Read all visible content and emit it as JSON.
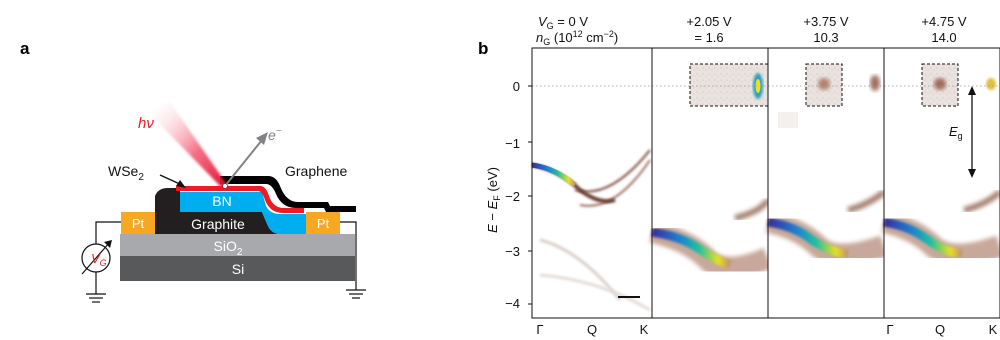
{
  "panel_a": {
    "label": "a",
    "layers": {
      "si": "Si",
      "sio2": "SiO",
      "sio2_sub": "2",
      "graphite": "Graphite",
      "bn": "BN",
      "pt_left": "Pt",
      "pt_right": "Pt"
    },
    "wse2": "WSe",
    "wse2_sub": "2",
    "graphene": "Graphene",
    "photon": "hν",
    "electron": "e",
    "electron_sup": "−",
    "gate_v": "V",
    "gate_v_sub": "G",
    "colors": {
      "si": "#58595b",
      "sio2": "#a7a9ac",
      "graphite": "#231f20",
      "bn": "#00aeef",
      "pt": "#f7a823",
      "wse2": "#ed1c24",
      "graphene": "#000000"
    }
  },
  "panel_b": {
    "label": "b",
    "header_line1_prefix": "V",
    "header_line1_sub": "G",
    "header_line1_val": " = 0 V",
    "header_line2_prefix": "n",
    "header_line2_sub": "G",
    "header_line2_val": " (10",
    "header_line2_exp": "12",
    "header_line2_unit": " cm",
    "header_line2_unit_exp": "−2",
    "header_line2_end": ")",
    "panels": [
      {
        "voltage": "",
        "density": ""
      },
      {
        "voltage": "+2.05 V",
        "density": "= 1.6"
      },
      {
        "voltage": "+3.75 V",
        "density": "10.3"
      },
      {
        "voltage": "+4.75 V",
        "density": "14.0"
      }
    ],
    "ylabel_e": "E",
    "ylabel_mid": " − ",
    "ylabel_ef": "E",
    "ylabel_ef_sub": "F",
    "ylabel_unit": " (eV)",
    "yticks": [
      "0",
      "−1",
      "−2",
      "−3",
      "−4"
    ],
    "xticks_left": [
      "Γ",
      "Q",
      "K"
    ],
    "xticks_right": [
      "Γ",
      "Q",
      "K"
    ],
    "gap_label": "E",
    "gap_label_sub": "g"
  },
  "chart_data": {
    "type": "heatmap",
    "ylim": [
      -4.2,
      0.6
    ],
    "yticks": [
      0,
      -1,
      -2,
      -3,
      -4
    ],
    "series": [
      {
        "name": "0 V",
        "vbm_at_gamma": -1.5,
        "cbm_visible": false
      },
      {
        "name": "+2.05 V",
        "vbm_at_gamma": -2.6,
        "cbm_visible": true
      },
      {
        "name": "+3.75 V",
        "vbm_at_gamma": -2.6,
        "cbm_visible": true
      },
      {
        "name": "+4.75 V",
        "vbm_at_gamma": -2.6,
        "cbm_visible": true
      }
    ]
  }
}
